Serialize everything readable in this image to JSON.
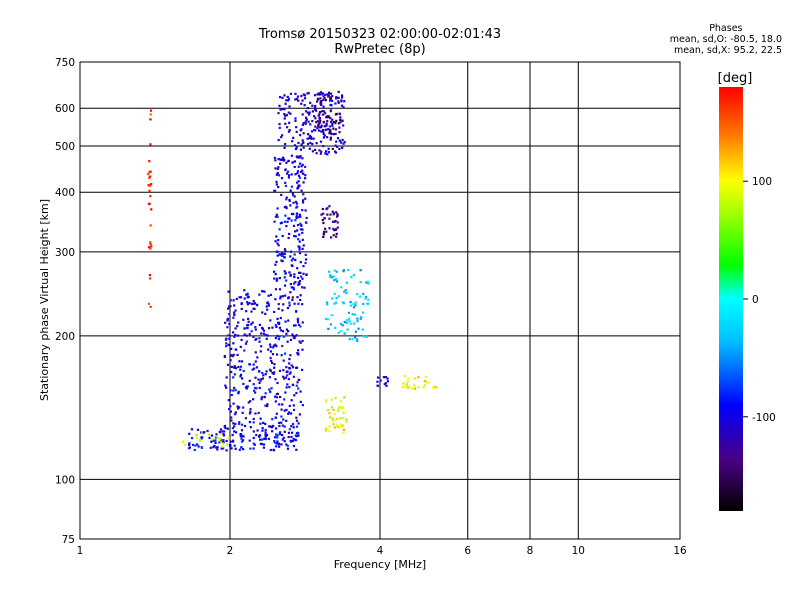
{
  "header": {
    "title_line1": "Tromsø 20150323 02:00:00-02:01:43",
    "title_line2": "RwPretec (8p)",
    "phase_title": "Phases",
    "phase_line1": "mean, sd,O: -80.5, 18.0",
    "phase_line2": "mean, sd,X:  95.2, 22.5"
  },
  "colorbar": {
    "label": "[deg]",
    "ticks": [
      {
        "value": 100,
        "label": "100"
      },
      {
        "value": 0,
        "label": "0"
      },
      {
        "value": -100,
        "label": "-100"
      }
    ],
    "range": [
      -180,
      180
    ]
  },
  "chart_data": {
    "type": "scatter",
    "title": "Tromsø 20150323 02:00:00-02:01:43",
    "subtitle": "RwPretec (8p)",
    "xlabel": "Frequency [MHz]",
    "ylabel": "Stationary phase Virtual Height [km]",
    "x_scale": "log",
    "y_scale": "log",
    "xlim": [
      1,
      16
    ],
    "ylim": [
      75,
      750
    ],
    "x_ticks": [
      1,
      2,
      4,
      6,
      8,
      10,
      16
    ],
    "x_tick_labels": [
      "1",
      "2",
      "4",
      "6",
      "8",
      "10",
      "16"
    ],
    "x_gridlines": [
      2,
      4,
      6,
      8,
      10
    ],
    "y_ticks": [
      75,
      100,
      200,
      300,
      400,
      500,
      600,
      750
    ],
    "y_tick_labels": [
      "75",
      "100",
      "200",
      "300",
      "400",
      "500",
      "600",
      "750"
    ],
    "y_gridlines": [
      100,
      200,
      300,
      400,
      500,
      600
    ],
    "color_variable": "phase [deg]",
    "clusters": [
      {
        "name_hint": "O-trace low",
        "x_range": [
          1.65,
          2.75
        ],
        "y_range": [
          115,
          128
        ],
        "phase": -95,
        "count": 160
      },
      {
        "name_hint": "O-trace low yellow",
        "x_range": [
          1.6,
          2.0
        ],
        "y_range": [
          117,
          126
        ],
        "phase": 100,
        "count": 18
      },
      {
        "name_hint": "O-trace rising",
        "x_range": [
          1.95,
          2.8
        ],
        "y_range": [
          128,
          250
        ],
        "phase": -100,
        "count": 420
      },
      {
        "name_hint": "O-trace column",
        "x_range": [
          2.45,
          2.85
        ],
        "y_range": [
          250,
          480
        ],
        "phase": -100,
        "count": 230
      },
      {
        "name_hint": "O-trace top",
        "x_range": [
          2.5,
          3.4
        ],
        "y_range": [
          480,
          650
        ],
        "phase": -105,
        "count": 200
      },
      {
        "name_hint": "O-trace top violet",
        "x_range": [
          2.95,
          3.35
        ],
        "y_range": [
          520,
          650
        ],
        "phase": -140,
        "count": 70
      },
      {
        "name_hint": "F region violet",
        "x_range": [
          3.05,
          3.3
        ],
        "y_range": [
          320,
          380
        ],
        "phase": -140,
        "count": 40
      },
      {
        "name_hint": "cyan X-trace",
        "x_range": [
          3.1,
          3.8
        ],
        "y_range": [
          195,
          275
        ],
        "phase": -30,
        "count": 90
      },
      {
        "name_hint": "yellow X-trace",
        "x_range": [
          3.1,
          3.45
        ],
        "y_range": [
          125,
          150
        ],
        "phase": 100,
        "count": 45
      },
      {
        "name_hint": "yellow spread",
        "x_range": [
          4.4,
          5.2
        ],
        "y_range": [
          155,
          165
        ],
        "phase": 105,
        "count": 25
      },
      {
        "name_hint": "blue spread",
        "x_range": [
          3.95,
          4.15
        ],
        "y_range": [
          157,
          164
        ],
        "phase": -110,
        "count": 12
      },
      {
        "name_hint": "red column",
        "x_range": [
          1.37,
          1.39
        ],
        "y_range": [
          225,
          625
        ],
        "phase": 170,
        "count": 28
      }
    ]
  }
}
